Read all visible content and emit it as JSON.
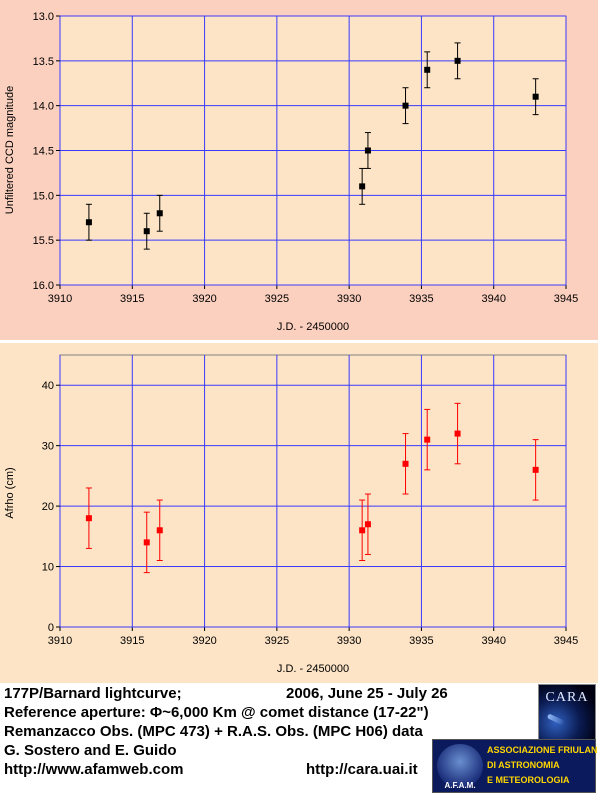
{
  "colors": {
    "panel1_bg": "#fcd0bf",
    "panel2_bg": "#fde4c6",
    "plot_bg": "#fde4c6",
    "grid": "#3a3aff",
    "series1": "#000000",
    "series2": "#ff0000"
  },
  "chart_data": [
    {
      "type": "scatter",
      "error_bars": true,
      "xlabel": "J.D. - 2450000",
      "ylabel": "Unfiltered CCD magnitude",
      "xlim": [
        3910,
        3945
      ],
      "ylim": [
        13.0,
        16.0
      ],
      "y_inverted": true,
      "xticks": [
        "3910",
        "3915",
        "3920",
        "3925",
        "3930",
        "3935",
        "3940",
        "3945"
      ],
      "yticks": [
        "13.0",
        "13.5",
        "14.0",
        "14.5",
        "15.0",
        "15.5",
        "16.0"
      ],
      "grid": true,
      "marker_color": "#000000",
      "series": [
        {
          "x": [
            3912.0,
            3916.0,
            3916.9,
            3930.9,
            3931.3,
            3933.9,
            3935.4,
            3937.5,
            3942.9
          ],
          "y": [
            15.3,
            15.4,
            15.2,
            14.9,
            14.5,
            14.0,
            13.6,
            13.5,
            13.9
          ],
          "error": [
            0.2,
            0.2,
            0.2,
            0.2,
            0.2,
            0.2,
            0.2,
            0.2,
            0.2
          ]
        }
      ]
    },
    {
      "type": "scatter",
      "error_bars": true,
      "xlabel": "J.D. - 2450000",
      "ylabel": "Afrho (cm)",
      "xlim": [
        3910,
        3945
      ],
      "ylim": [
        0,
        45
      ],
      "xticks": [
        "3910",
        "3915",
        "3920",
        "3925",
        "3930",
        "3935",
        "3940",
        "3945"
      ],
      "yticks": [
        "0",
        "10",
        "20",
        "30",
        "40"
      ],
      "grid": true,
      "marker_color": "#ff0000",
      "series": [
        {
          "x": [
            3912.0,
            3916.0,
            3916.9,
            3930.9,
            3931.3,
            3933.9,
            3935.4,
            3937.5,
            3942.9
          ],
          "y": [
            18,
            14,
            16,
            16,
            17,
            27,
            31,
            32,
            26
          ],
          "error": [
            5,
            5,
            5,
            5,
            5,
            5,
            5,
            5,
            5
          ]
        }
      ]
    }
  ],
  "footer": {
    "line1_left": "177P/Barnard lightcurve;",
    "line1_right": "2006, June 25 - July 26",
    "line2": "Reference aperture:  Φ~6,000 Km @ comet distance (17-22\")",
    "line3": "Remanzacco Obs. (MPC 473) + R.A.S. Obs. (MPC H06) data",
    "line4": "G. Sostero and E. Guido",
    "link_left": "http://www.afamweb.com",
    "link_right": "http://cara.uai.it",
    "cara_logo_text": "CARA",
    "afam_emblem_text": "A.F.A.M.",
    "afam_lines": [
      "ASSOCIAZIONE FRIULANA",
      "DI ASTRONOMIA",
      "E METEOROLOGIA"
    ]
  }
}
